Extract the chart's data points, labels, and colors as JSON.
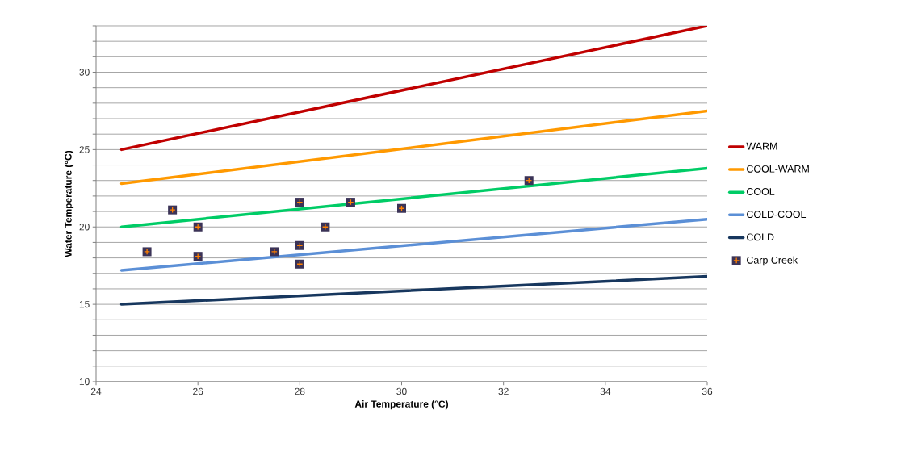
{
  "chart_data": {
    "type": "line",
    "xlabel": "Air Temperature (°C)",
    "ylabel": "Water Temperature (°C)",
    "xlim": [
      24,
      36
    ],
    "ylim": [
      10,
      33
    ],
    "xticks": [
      24,
      26,
      28,
      30,
      32,
      34,
      36
    ],
    "yticks": [
      10,
      {
        "value": 11,
        "label": null
      },
      {
        "value": 12,
        "label": null
      },
      {
        "value": 13,
        "label": null
      },
      {
        "value": 14,
        "label": null
      },
      15,
      {
        "value": 16,
        "label": null
      },
      {
        "value": 17,
        "label": null
      },
      {
        "value": 18,
        "label": null
      },
      {
        "value": 19,
        "label": null
      },
      20,
      {
        "value": 21,
        "label": null
      },
      {
        "value": 22,
        "label": null
      },
      {
        "value": 23,
        "label": null
      },
      {
        "value": 24,
        "label": null
      },
      25,
      {
        "value": 26,
        "label": null
      },
      {
        "value": 27,
        "label": null
      },
      {
        "value": 28,
        "label": null
      },
      {
        "value": 29,
        "label": null
      },
      30,
      {
        "value": 31,
        "label": null
      },
      {
        "value": 32,
        "label": null
      },
      {
        "value": 33,
        "label": null
      }
    ],
    "grid": "y",
    "legend": "right",
    "series": [
      {
        "name": "WARM",
        "color": "#c00000",
        "x": [
          24.5,
          36
        ],
        "values": [
          25,
          33
        ]
      },
      {
        "name": "COOL-WARM",
        "color": "#ff9900",
        "x": [
          24.5,
          36
        ],
        "values": [
          22.8,
          27.5
        ]
      },
      {
        "name": "COOL",
        "color": "#00cc66",
        "x": [
          24.5,
          36
        ],
        "values": [
          20,
          23.8
        ]
      },
      {
        "name": "COLD-COOL",
        "color": "#5b8fd6",
        "x": [
          24.5,
          36
        ],
        "values": [
          17.2,
          20.5
        ]
      },
      {
        "name": "COLD",
        "color": "#17375e",
        "x": [
          24.5,
          36
        ],
        "values": [
          15,
          16.8
        ]
      },
      {
        "name": "Carp Creek",
        "type": "scatter",
        "marker": "square",
        "color": "#3b3357",
        "x": [
          25,
          25.5,
          26,
          26,
          27.5,
          28,
          28,
          28,
          28.5,
          29,
          30,
          32.5
        ],
        "values": [
          18.4,
          21.1,
          20.0,
          18.1,
          18.4,
          21.6,
          18.8,
          17.6,
          20.0,
          21.6,
          21.2,
          23.0
        ]
      }
    ]
  }
}
